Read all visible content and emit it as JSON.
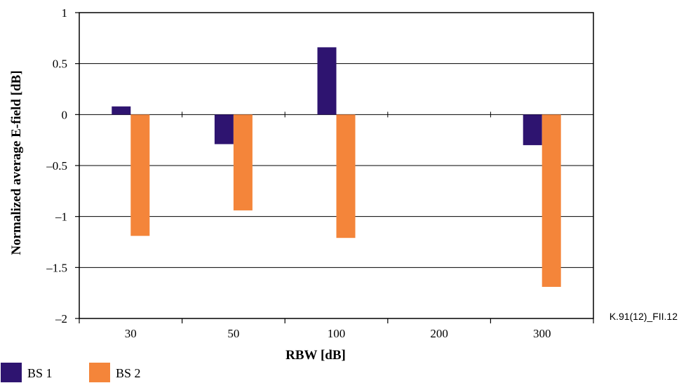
{
  "figure_id": "K.91(12)_FII.12",
  "chart_data": {
    "type": "bar",
    "categories": [
      "30",
      "50",
      "100",
      "200",
      "300"
    ],
    "series": [
      {
        "name": "BS 1",
        "color": "#2E1470",
        "values": [
          0.08,
          -0.29,
          0.66,
          null,
          -0.3
        ]
      },
      {
        "name": "BS 2",
        "color": "#F4853A",
        "values": [
          -1.19,
          -0.94,
          -1.21,
          null,
          -1.69
        ]
      }
    ],
    "title": "",
    "xlabel": "RBW [dB]",
    "ylabel": "Normalized average E-field [dB]",
    "ylim": [
      -2,
      1
    ],
    "yticks": [
      1,
      0.5,
      0,
      -0.5,
      -1,
      -1.5,
      -2
    ],
    "ytick_labels": [
      "1",
      "0.5",
      "0",
      "–0.5",
      "–1",
      "–1.5",
      "–2"
    ],
    "grid": true,
    "legend_position": "bottom-left"
  }
}
